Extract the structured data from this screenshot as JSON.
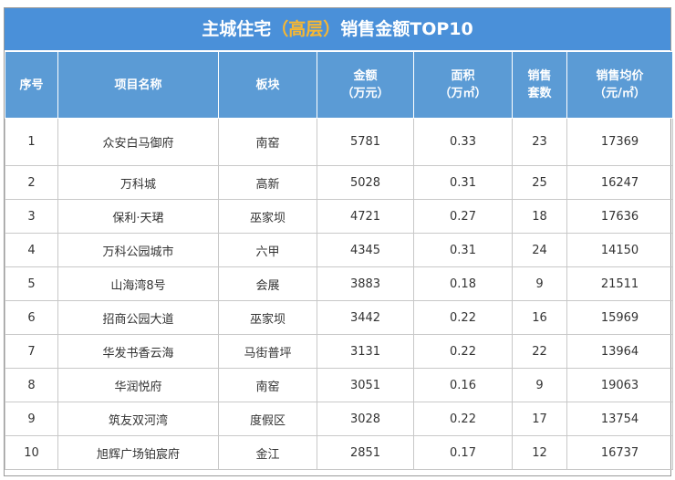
{
  "title": {
    "prefix": "主城住宅",
    "highlight": "（高层）",
    "suffix": "销售金额TOP10"
  },
  "colors": {
    "header_bg": "#5b9bd5",
    "title_bg": "#4a90d9",
    "highlight": "#f7b731"
  },
  "headers": [
    {
      "line1": "序号",
      "line2": ""
    },
    {
      "line1": "项目名称",
      "line2": ""
    },
    {
      "line1": "板块",
      "line2": ""
    },
    {
      "line1": "金额",
      "line2": "（万元）"
    },
    {
      "line1": "面积",
      "line2": "（万㎡）"
    },
    {
      "line1": "销售",
      "line2": "套数"
    },
    {
      "line1": "销售均价",
      "line2": "（元/㎡）"
    }
  ],
  "rows": [
    {
      "no": "1",
      "name": "众安白马御府",
      "area_block": "南窑",
      "amount": "5781",
      "area": "0.33",
      "units": "23",
      "price": "17369"
    },
    {
      "no": "2",
      "name": "万科城",
      "area_block": "高新",
      "amount": "5028",
      "area": "0.31",
      "units": "25",
      "price": "16247"
    },
    {
      "no": "3",
      "name": "保利·天珺",
      "area_block": "巫家坝",
      "amount": "4721",
      "area": "0.27",
      "units": "18",
      "price": "17636"
    },
    {
      "no": "4",
      "name": "万科公园城市",
      "area_block": "六甲",
      "amount": "4345",
      "area": "0.31",
      "units": "24",
      "price": "14150"
    },
    {
      "no": "5",
      "name": "山海湾8号",
      "area_block": "会展",
      "amount": "3883",
      "area": "0.18",
      "units": "9",
      "price": "21511"
    },
    {
      "no": "6",
      "name": "招商公园大道",
      "area_block": "巫家坝",
      "amount": "3442",
      "area": "0.22",
      "units": "16",
      "price": "15969"
    },
    {
      "no": "7",
      "name": "华发书香云海",
      "area_block": "马街普坪",
      "amount": "3131",
      "area": "0.22",
      "units": "22",
      "price": "13964"
    },
    {
      "no": "8",
      "name": "华润悦府",
      "area_block": "南窑",
      "amount": "3051",
      "area": "0.16",
      "units": "9",
      "price": "19063"
    },
    {
      "no": "9",
      "name": "筑友双河湾",
      "area_block": "度假区",
      "amount": "3028",
      "area": "0.22",
      "units": "17",
      "price": "13754"
    },
    {
      "no": "10",
      "name": "旭辉广场铂宸府",
      "area_block": "金江",
      "amount": "2851",
      "area": "0.17",
      "units": "12",
      "price": "16737"
    }
  ]
}
